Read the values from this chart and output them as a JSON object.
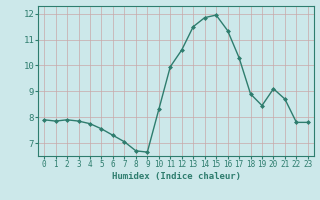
{
  "x": [
    0,
    1,
    2,
    3,
    4,
    5,
    6,
    7,
    8,
    9,
    10,
    11,
    12,
    13,
    14,
    15,
    16,
    17,
    18,
    19,
    20,
    21,
    22,
    23
  ],
  "y": [
    7.9,
    7.85,
    7.9,
    7.85,
    7.75,
    7.55,
    7.3,
    7.05,
    6.7,
    6.65,
    8.3,
    9.95,
    10.6,
    11.5,
    11.85,
    11.95,
    11.35,
    10.3,
    8.9,
    8.45,
    9.1,
    8.7,
    7.8,
    7.8
  ],
  "line_color": "#2e7d6e",
  "marker": "D",
  "marker_size": 2.0,
  "xlabel": "Humidex (Indice chaleur)",
  "xlim": [
    -0.5,
    23.5
  ],
  "ylim": [
    6.5,
    12.3
  ],
  "yticks": [
    7,
    8,
    9,
    10,
    11,
    12
  ],
  "xticks": [
    0,
    1,
    2,
    3,
    4,
    5,
    6,
    7,
    8,
    9,
    10,
    11,
    12,
    13,
    14,
    15,
    16,
    17,
    18,
    19,
    20,
    21,
    22,
    23
  ],
  "bg_color": "#cce8ea",
  "grid_color": "#c8a8a8",
  "axis_color": "#2e7d6e",
  "font_color": "#2e7d6e",
  "xlabel_fontsize": 6.5,
  "tick_fontsize": 5.5,
  "ytick_fontsize": 6.5,
  "linewidth": 1.0
}
